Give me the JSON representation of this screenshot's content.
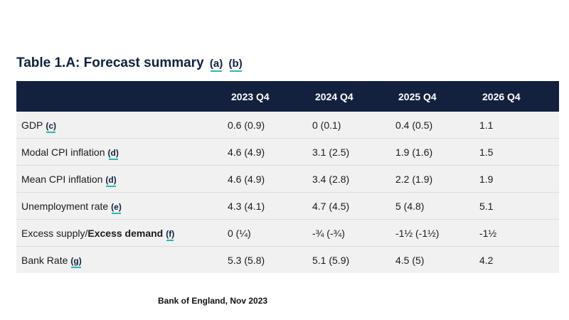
{
  "title": {
    "text": "Table 1.A: Forecast summary",
    "footnotes": [
      "(a)",
      "(b)"
    ]
  },
  "table": {
    "columns": [
      "",
      "2023 Q4",
      "2024 Q4",
      "2025 Q4",
      "2026 Q4"
    ],
    "rows": [
      {
        "label": "GDP",
        "footnote": "(c)",
        "values": [
          "0.6 (0.9)",
          "0 (0.1)",
          "0.4 (0.5)",
          "1.1"
        ]
      },
      {
        "label": "Modal CPI inflation",
        "footnote": "(d)",
        "values": [
          "4.6 (4.9)",
          "3.1 (2.5)",
          "1.9 (1.6)",
          "1.5"
        ]
      },
      {
        "label": "Mean CPI inflation",
        "footnote": "(d)",
        "values": [
          "4.6 (4.9)",
          "3.4 (2.8)",
          "2.2 (1.9)",
          "1.9"
        ]
      },
      {
        "label": "Unemployment rate",
        "footnote": "(e)",
        "values": [
          "4.3 (4.1)",
          "4.7 (4.5)",
          "5 (4.8)",
          "5.1"
        ]
      },
      {
        "label": "Excess supply/",
        "label_bold": "Excess demand",
        "footnote": "(f)",
        "values": [
          "0 (¼)",
          "-¾ (-¾)",
          "-1½ (-1½)",
          "-1½"
        ]
      },
      {
        "label": "Bank Rate",
        "footnote": "(g)",
        "values": [
          "5.3 (5.8)",
          "5.1 (5.9)",
          "4.5 (5)",
          "4.2"
        ]
      }
    ]
  },
  "source": "Bank of England, Nov 2023"
}
